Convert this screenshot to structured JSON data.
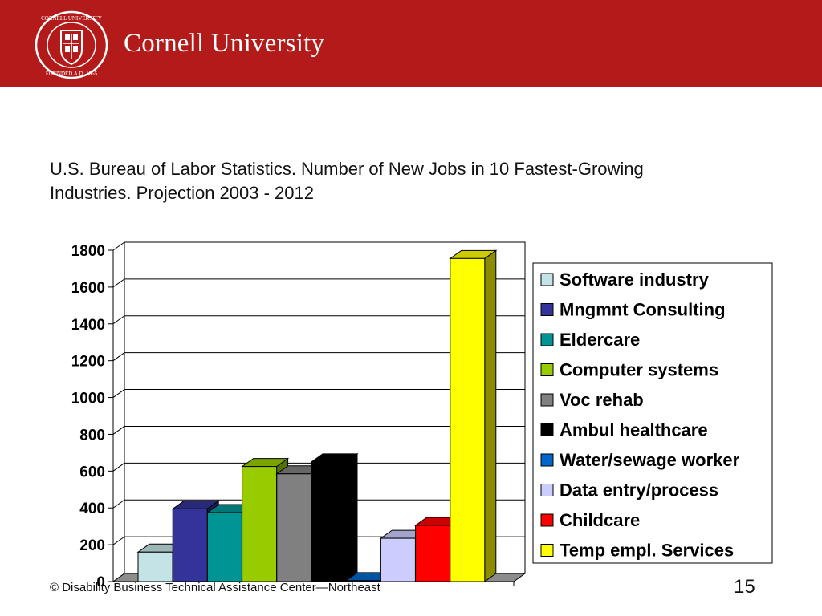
{
  "header": {
    "brand": "Cornell University",
    "seal_text_top": "CORNELL UNIVERSITY",
    "seal_text_bottom": "FOUNDED A.D. 1865",
    "accent": "#b31b1b"
  },
  "slide": {
    "title_line1": "U.S. Bureau of Labor Statistics.  Number of New Jobs in 10 Fastest-Growing",
    "title_line2": "Industries.  Projection 2003 - 2012"
  },
  "footer": {
    "credit": "© Disability Business Technical Assistance Center—Northeast",
    "page_number": "15"
  },
  "chart_data": {
    "type": "bar",
    "style": "3d",
    "title": "",
    "xlabel": "",
    "ylabel": "",
    "ylim": [
      0,
      1800
    ],
    "yticks": [
      0,
      200,
      400,
      600,
      800,
      1000,
      1200,
      1400,
      1600,
      1800
    ],
    "grid": true,
    "legend_position": "right",
    "series": [
      {
        "name": "Software industry",
        "value": 160,
        "color": "#c4e3e6"
      },
      {
        "name": "Mngmnt Consulting",
        "value": 395,
        "color": "#333399"
      },
      {
        "name": "Eldercare",
        "value": 375,
        "color": "#009494"
      },
      {
        "name": "Computer systems",
        "value": 625,
        "color": "#99cc00"
      },
      {
        "name": "Voc rehab",
        "value": 585,
        "color": "#808080"
      },
      {
        "name": "Ambul healthcare",
        "value": 650,
        "color": "#000000"
      },
      {
        "name": "Water/sewage worker",
        "value": 5,
        "color": "#0066cc"
      },
      {
        "name": "Data entry/process",
        "value": 235,
        "color": "#ccccff"
      },
      {
        "name": "Childcare",
        "value": 305,
        "color": "#ff0000"
      },
      {
        "name": "Temp empl. Services",
        "value": 1755,
        "color": "#ffff00"
      }
    ]
  }
}
